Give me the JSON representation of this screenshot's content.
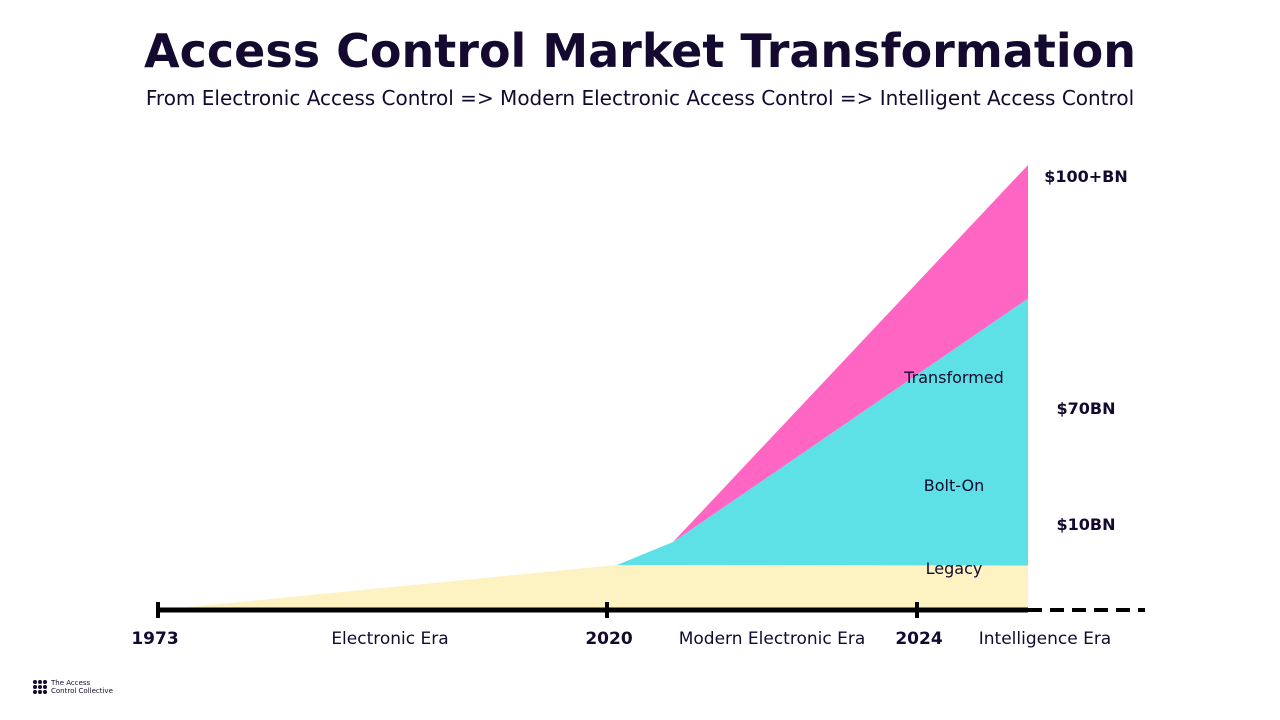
{
  "header": {
    "title": "Access Control Market Transformation",
    "subtitle": "From Electronic Access Control => Modern Electronic Access Control => Intelligent Access Control"
  },
  "logo": {
    "line1": "The Access",
    "line2": "Control Collective"
  },
  "chart_data": {
    "type": "area",
    "title": "Access Control Market Transformation",
    "subtitle": "From Electronic Access Control => Modern Electronic Access Control => Intelligent Access Control",
    "x_ticks": [
      "1973",
      "2020",
      "2024"
    ],
    "eras": [
      "Electronic Era",
      "Modern Electronic Era",
      "Intelligence Era"
    ],
    "series": [
      {
        "name": "Legacy",
        "color": "#fdf2c2",
        "values": [
          0,
          10
        ]
      },
      {
        "name": "Bolt-On",
        "color": "#5de0e6",
        "values": [
          0,
          60
        ]
      },
      {
        "name": "Transformed",
        "color": "#ff66c4",
        "values": [
          0,
          30
        ]
      }
    ],
    "value_labels": [
      "$10BN",
      "$70BN",
      "$100+BN"
    ],
    "colors": {
      "text": "#14092e",
      "axis": "#000000"
    }
  }
}
